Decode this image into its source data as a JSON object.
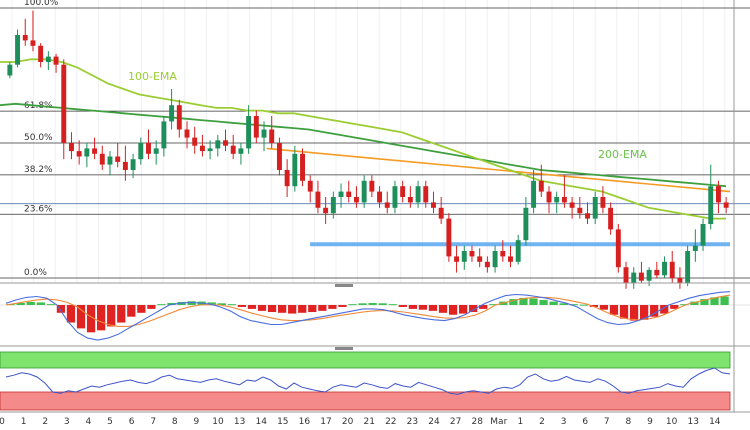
{
  "chart_data": [
    {
      "panel": "price",
      "type": "candlestick",
      "ylim": [
        0,
        100
      ],
      "fib_levels": [
        {
          "label": "100.0%",
          "value": 100
        },
        {
          "label": "61.8%",
          "value": 61.8
        },
        {
          "label": "50.0%",
          "value": 50
        },
        {
          "label": "38.2%",
          "value": 38.2
        },
        {
          "label": "23.6%",
          "value": 23.6
        },
        {
          "label": "0.0%",
          "value": 0
        }
      ],
      "annotations": [
        {
          "text": "100-EMA",
          "color": "#9acd32"
        },
        {
          "text": "200-EMA",
          "color": "#6ac24a"
        }
      ],
      "colors": {
        "up": "#1e8f5a",
        "down": "#d62020",
        "ema100": "#9acd32",
        "ema200": "#3f9f3f",
        "trendline": "#f59a23",
        "support": "#6fb3f0",
        "current": "#3a5fa8"
      },
      "candles": [
        [
          75,
          80,
          74,
          79
        ],
        [
          79,
          92,
          78,
          90
        ],
        [
          90,
          96,
          86,
          88
        ],
        [
          88,
          99,
          84,
          86
        ],
        [
          86,
          87,
          78,
          80
        ],
        [
          80,
          84,
          77,
          82
        ],
        [
          82,
          83,
          76,
          79
        ],
        [
          79,
          81,
          44,
          50
        ],
        [
          50,
          54,
          44,
          47
        ],
        [
          47,
          51,
          42,
          45
        ],
        [
          45,
          50,
          41,
          48
        ],
        [
          48,
          52,
          44,
          46
        ],
        [
          46,
          49,
          40,
          42
        ],
        [
          42,
          47,
          38,
          45
        ],
        [
          45,
          50,
          41,
          43
        ],
        [
          43,
          49,
          36,
          40
        ],
        [
          40,
          46,
          37,
          44
        ],
        [
          44,
          52,
          42,
          50
        ],
        [
          50,
          55,
          44,
          46
        ],
        [
          46,
          51,
          42,
          48
        ],
        [
          48,
          60,
          45,
          58
        ],
        [
          58,
          70,
          55,
          64
        ],
        [
          64,
          66,
          52,
          55
        ],
        [
          55,
          58,
          48,
          52
        ],
        [
          52,
          56,
          46,
          49
        ],
        [
          49,
          53,
          45,
          47
        ],
        [
          47,
          51,
          44,
          48
        ],
        [
          48,
          53,
          45,
          51
        ],
        [
          51,
          55,
          47,
          49
        ],
        [
          49,
          53,
          44,
          46
        ],
        [
          46,
          50,
          42,
          48
        ],
        [
          48,
          64,
          46,
          60
        ],
        [
          60,
          62,
          50,
          52
        ],
        [
          52,
          58,
          47,
          55
        ],
        [
          55,
          60,
          48,
          50
        ],
        [
          50,
          52,
          38,
          40
        ],
        [
          40,
          44,
          30,
          34
        ],
        [
          34,
          49,
          32,
          46
        ],
        [
          46,
          48,
          34,
          36
        ],
        [
          36,
          38,
          28,
          32
        ],
        [
          32,
          36,
          24,
          26
        ],
        [
          26,
          30,
          20,
          24
        ],
        [
          24,
          32,
          22,
          30
        ],
        [
          30,
          35,
          26,
          32
        ],
        [
          32,
          36,
          28,
          30
        ],
        [
          30,
          34,
          26,
          28
        ],
        [
          28,
          38,
          26,
          36
        ],
        [
          36,
          38,
          30,
          32
        ],
        [
          32,
          34,
          26,
          28
        ],
        [
          28,
          32,
          24,
          26
        ],
        [
          26,
          36,
          24,
          34
        ],
        [
          34,
          36,
          28,
          30
        ],
        [
          30,
          34,
          26,
          28
        ],
        [
          28,
          36,
          26,
          34
        ],
        [
          34,
          36,
          26,
          28
        ],
        [
          28,
          32,
          24,
          26
        ],
        [
          26,
          30,
          20,
          22
        ],
        [
          22,
          24,
          6,
          8
        ],
        [
          8,
          12,
          2,
          6
        ],
        [
          6,
          12,
          3,
          10
        ],
        [
          10,
          12,
          6,
          8
        ],
        [
          8,
          11,
          4,
          6
        ],
        [
          6,
          8,
          2,
          4
        ],
        [
          4,
          12,
          2,
          10
        ],
        [
          10,
          14,
          6,
          8
        ],
        [
          8,
          12,
          4,
          6
        ],
        [
          6,
          16,
          5,
          14
        ],
        [
          14,
          30,
          12,
          26
        ],
        [
          26,
          40,
          24,
          36
        ],
        [
          36,
          42,
          30,
          32
        ],
        [
          32,
          34,
          24,
          28
        ],
        [
          28,
          32,
          24,
          30
        ],
        [
          30,
          38,
          26,
          28
        ],
        [
          28,
          30,
          22,
          26
        ],
        [
          26,
          30,
          22,
          24
        ],
        [
          24,
          28,
          20,
          22
        ],
        [
          22,
          32,
          20,
          30
        ],
        [
          30,
          34,
          24,
          26
        ],
        [
          26,
          28,
          16,
          18
        ],
        [
          18,
          20,
          2,
          4
        ],
        [
          4,
          6,
          -4,
          -2
        ],
        [
          -2,
          4,
          -4,
          2
        ],
        [
          2,
          6,
          -2,
          -1
        ],
        [
          -1,
          4,
          -3,
          3
        ],
        [
          3,
          6,
          0,
          1
        ],
        [
          1,
          8,
          0,
          6
        ],
        [
          6,
          10,
          -2,
          0
        ],
        [
          0,
          4,
          -4,
          -2
        ],
        [
          -2,
          12,
          -3,
          10
        ],
        [
          10,
          18,
          6,
          12
        ],
        [
          12,
          22,
          10,
          20
        ],
        [
          20,
          42,
          18,
          34
        ],
        [
          34,
          36,
          24,
          28
        ],
        [
          28,
          30,
          24,
          26
        ]
      ],
      "ema100": [
        80,
        80,
        81,
        81,
        80,
        78,
        75,
        72,
        70,
        68,
        67,
        66,
        65,
        64,
        63,
        63,
        62,
        62,
        61,
        61,
        60,
        59,
        58,
        57,
        56,
        55,
        54,
        52,
        50,
        48,
        46,
        44,
        42,
        40,
        38,
        36,
        35,
        34,
        33,
        32,
        30,
        28,
        26,
        25,
        24,
        23,
        22,
        22
      ],
      "ema200": [
        64,
        64.5,
        64,
        63.5,
        63,
        62.5,
        62,
        61.5,
        61,
        60.5,
        60,
        59.5,
        59,
        58.5,
        58,
        57.5,
        57,
        56.5,
        56,
        55.5,
        55,
        54,
        53,
        52,
        51,
        50,
        49,
        48,
        47,
        46,
        45,
        44,
        43,
        42,
        41,
        40,
        39.5,
        39,
        38.5,
        38,
        37.5,
        37,
        36.5,
        36,
        35.5,
        35,
        34.5,
        34
      ],
      "trendline": [
        [
          0.36,
          48
        ],
        [
          1.0,
          32
        ]
      ],
      "support": [
        [
          0.42,
          12.5
        ],
        [
          1.0,
          12.5
        ]
      ],
      "current_level": 27.5
    },
    {
      "panel": "macd",
      "type": "histogram+lines",
      "ylim": [
        -1,
        1
      ],
      "histogram": [
        0.05,
        0.12,
        0.18,
        0.15,
        0.05,
        -0.2,
        -0.45,
        -0.6,
        -0.7,
        -0.65,
        -0.55,
        -0.45,
        -0.3,
        -0.2,
        -0.1,
        0.05,
        0.12,
        0.18,
        0.22,
        0.2,
        0.15,
        0.1,
        0.05,
        -0.05,
        -0.1,
        -0.15,
        -0.18,
        -0.2,
        -0.22,
        -0.2,
        -0.18,
        -0.15,
        -0.1,
        -0.05,
        0.05,
        0.1,
        0.12,
        0.1,
        0.05,
        -0.05,
        -0.1,
        -0.12,
        -0.15,
        -0.2,
        -0.25,
        -0.22,
        -0.18,
        -0.1,
        0.05,
        0.2,
        0.35,
        0.42,
        0.38,
        0.3,
        0.2,
        0.1,
        0.05,
        0.02,
        -0.05,
        -0.12,
        -0.25,
        -0.35,
        -0.4,
        -0.38,
        -0.3,
        -0.22,
        -0.1,
        0.05,
        0.2,
        0.35,
        0.45,
        0.5
      ],
      "macd_line": [
        0.1,
        0.3,
        0.45,
        0.5,
        0.4,
        0.0,
        -0.4,
        -0.7,
        -0.85,
        -0.9,
        -0.85,
        -0.75,
        -0.6,
        -0.45,
        -0.3,
        -0.15,
        0.0,
        0.1,
        0.15,
        0.12,
        0.05,
        -0.05,
        -0.15,
        -0.3,
        -0.4,
        -0.45,
        -0.5,
        -0.5,
        -0.45,
        -0.4,
        -0.35,
        -0.3,
        -0.25,
        -0.2,
        -0.15,
        -0.1,
        -0.1,
        -0.12,
        -0.18,
        -0.25,
        -0.3,
        -0.35,
        -0.38,
        -0.4,
        -0.35,
        -0.25,
        -0.1,
        0.1,
        0.35,
        0.55,
        0.62,
        0.58,
        0.5,
        0.4,
        0.25,
        0.1,
        -0.05,
        -0.2,
        -0.35,
        -0.45,
        -0.5,
        -0.48,
        -0.4,
        -0.3,
        -0.15,
        0.0,
        0.2,
        0.4,
        0.55,
        0.65,
        0.75,
        0.78
      ],
      "signal_line": [
        0.0,
        0.1,
        0.2,
        0.3,
        0.35,
        0.3,
        0.15,
        -0.05,
        -0.25,
        -0.4,
        -0.5,
        -0.55,
        -0.55,
        -0.5,
        -0.42,
        -0.32,
        -0.22,
        -0.12,
        -0.05,
        0.0,
        0.02,
        0.0,
        -0.05,
        -0.12,
        -0.2,
        -0.27,
        -0.33,
        -0.38,
        -0.4,
        -0.4,
        -0.38,
        -0.35,
        -0.3,
        -0.26,
        -0.22,
        -0.18,
        -0.15,
        -0.14,
        -0.15,
        -0.18,
        -0.22,
        -0.26,
        -0.3,
        -0.33,
        -0.34,
        -0.32,
        -0.26,
        -0.15,
        0.0,
        0.15,
        0.3,
        0.4,
        0.45,
        0.45,
        0.4,
        0.3,
        0.18,
        0.05,
        -0.08,
        -0.2,
        -0.3,
        -0.36,
        -0.38,
        -0.36,
        -0.3,
        -0.2,
        -0.07,
        0.08,
        0.22,
        0.36,
        0.48,
        0.58
      ]
    },
    {
      "panel": "rsi",
      "type": "line",
      "ylim": [
        0,
        100
      ],
      "overbought": 70,
      "oversold": 30,
      "values": [
        55,
        58,
        62,
        60,
        55,
        45,
        30,
        28,
        32,
        30,
        35,
        40,
        38,
        42,
        45,
        48,
        50,
        46,
        44,
        48,
        55,
        58,
        52,
        50,
        48,
        46,
        50,
        52,
        48,
        45,
        42,
        50,
        48,
        55,
        50,
        40,
        35,
        45,
        38,
        35,
        32,
        30,
        38,
        42,
        40,
        38,
        45,
        42,
        38,
        36,
        44,
        40,
        38,
        46,
        42,
        38,
        34,
        28,
        26,
        30,
        32,
        30,
        28,
        35,
        38,
        36,
        42,
        55,
        60,
        52,
        48,
        50,
        56,
        50,
        48,
        46,
        52,
        48,
        40,
        30,
        28,
        32,
        34,
        36,
        38,
        44,
        40,
        38,
        52,
        60,
        66,
        70,
        62,
        60
      ],
      "x_ticks": [
        "0",
        "1",
        "2",
        "3",
        "4",
        "5",
        "6",
        "7",
        "8",
        "9",
        "10",
        "13",
        "14",
        "15",
        "16",
        "17",
        "20",
        "21",
        "22",
        "23",
        "24",
        "27",
        "28",
        "Mar",
        "1",
        "2",
        "3",
        "6",
        "7",
        "8",
        "9",
        "10",
        "13",
        "14"
      ]
    }
  ]
}
